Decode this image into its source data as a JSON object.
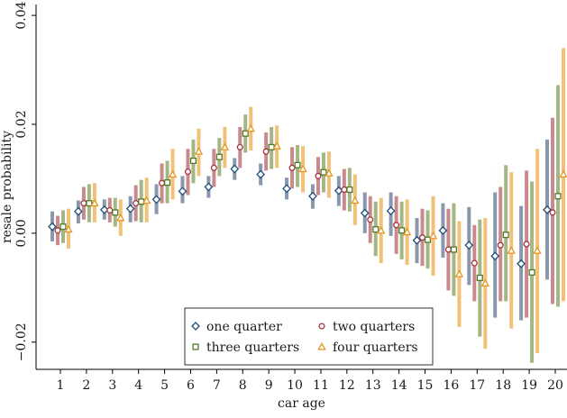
{
  "chart_data": {
    "type": "scatter",
    "subtype": "point estimates with confidence interval bars",
    "xlabel": "car age",
    "ylabel": "resale probability",
    "categories": [
      "1",
      "2",
      "3",
      "4",
      "5",
      "6",
      "7",
      "8",
      "9",
      "10",
      "11",
      "12",
      "13",
      "14",
      "15",
      "16",
      "17",
      "18",
      "19",
      "20"
    ],
    "ylim": [
      -0.025,
      0.042
    ],
    "y_ticks": [
      {
        "value": -0.02,
        "label": "−0.02"
      },
      {
        "value": 0.0,
        "label": "0.00"
      },
      {
        "value": 0.02,
        "label": "0.02"
      },
      {
        "value": 0.04,
        "label": "0.04"
      }
    ],
    "grid": false,
    "legend_position": "bottom-center",
    "series": [
      {
        "name": "one quarter",
        "marker": "diamond",
        "color": "#1f4e79",
        "bar_color": "#7f8fa6",
        "values": [
          0.0012,
          0.004,
          0.0043,
          0.0045,
          0.0062,
          0.0077,
          0.0085,
          0.0118,
          0.0108,
          0.0082,
          0.0068,
          0.0078,
          0.0037,
          0.0041,
          -0.0013,
          0.0005,
          -0.0022,
          -0.0042,
          -0.0056,
          0.0043
        ],
        "ci_low": [
          -0.0015,
          0.0018,
          0.0025,
          0.002,
          0.0035,
          0.0055,
          0.0065,
          0.0098,
          0.0088,
          0.0062,
          0.0045,
          0.005,
          0.0,
          -0.0005,
          -0.0055,
          -0.0045,
          -0.0095,
          -0.0155,
          -0.016,
          -0.0085
        ],
        "ci_high": [
          0.004,
          0.006,
          0.0062,
          0.0068,
          0.009,
          0.0105,
          0.0105,
          0.0138,
          0.0128,
          0.0102,
          0.009,
          0.0105,
          0.0075,
          0.0075,
          0.0028,
          0.0055,
          0.0048,
          0.0075,
          0.005,
          0.0172
        ]
      },
      {
        "name": "two quarters",
        "marker": "circle",
        "color": "#a8323a",
        "bar_color": "#c48084",
        "values": [
          0.0005,
          0.0055,
          0.0042,
          0.0055,
          0.0092,
          0.0113,
          0.012,
          0.0158,
          0.015,
          0.012,
          0.0105,
          0.008,
          0.0025,
          0.0015,
          -0.0008,
          -0.003,
          -0.0055,
          -0.0022,
          -0.002,
          0.0038
        ],
        "ci_low": [
          -0.0022,
          0.0025,
          0.002,
          0.0022,
          0.0055,
          0.007,
          0.0085,
          0.012,
          0.0115,
          0.0082,
          0.007,
          0.0042,
          -0.0018,
          -0.0038,
          -0.006,
          -0.0105,
          -0.0125,
          -0.0125,
          -0.0155,
          -0.013
        ],
        "ci_high": [
          0.0032,
          0.0085,
          0.0065,
          0.0088,
          0.0128,
          0.0155,
          0.0155,
          0.0195,
          0.0185,
          0.0158,
          0.014,
          0.0118,
          0.0068,
          0.0068,
          0.0045,
          0.0045,
          0.0015,
          0.0085,
          0.0115,
          0.0212
        ]
      },
      {
        "name": "three quarters",
        "marker": "square",
        "color": "#4f7a28",
        "bar_color": "#9bb07a",
        "values": [
          0.0012,
          0.0055,
          0.0038,
          0.0058,
          0.0093,
          0.0133,
          0.014,
          0.0183,
          0.0158,
          0.0125,
          0.0112,
          0.008,
          0.0007,
          0.0005,
          -0.0012,
          -0.003,
          -0.0082,
          -0.0003,
          -0.0072,
          0.0068
        ],
        "ci_low": [
          -0.0018,
          0.002,
          0.0012,
          0.002,
          0.0055,
          0.0092,
          0.0105,
          0.0148,
          0.0118,
          0.0085,
          0.0075,
          0.004,
          -0.0042,
          -0.0048,
          -0.0065,
          -0.0115,
          -0.019,
          -0.0125,
          -0.0238,
          -0.0135
        ],
        "ci_high": [
          0.0042,
          0.009,
          0.0065,
          0.0098,
          0.0133,
          0.0172,
          0.0175,
          0.0218,
          0.0195,
          0.0162,
          0.0148,
          0.012,
          0.0058,
          0.0058,
          0.0042,
          0.0055,
          0.0025,
          0.0125,
          0.0095,
          0.0272
        ]
      },
      {
        "name": "four quarters",
        "marker": "triangle",
        "color": "#e8961e",
        "bar_color": "#f0bc6c",
        "values": [
          0.0007,
          0.0055,
          0.0028,
          0.006,
          0.0108,
          0.015,
          0.0158,
          0.0192,
          0.016,
          0.0118,
          0.011,
          0.006,
          0.0005,
          0.0002,
          -0.0005,
          -0.0075,
          -0.0092,
          -0.0032,
          -0.0032,
          0.0108
        ],
        "ci_low": [
          -0.0028,
          0.002,
          -0.0005,
          0.002,
          0.0062,
          0.0105,
          0.012,
          0.0152,
          0.012,
          0.0075,
          0.0065,
          0.0015,
          -0.0055,
          -0.0058,
          -0.0078,
          -0.0172,
          -0.0212,
          -0.0175,
          -0.022,
          -0.0125
        ],
        "ci_high": [
          0.0045,
          0.0092,
          0.0062,
          0.0102,
          0.0155,
          0.0192,
          0.0195,
          0.0232,
          0.0198,
          0.016,
          0.015,
          0.0108,
          0.0065,
          0.0062,
          0.0068,
          0.0022,
          0.0028,
          0.0112,
          0.0155,
          0.034
        ]
      }
    ]
  }
}
